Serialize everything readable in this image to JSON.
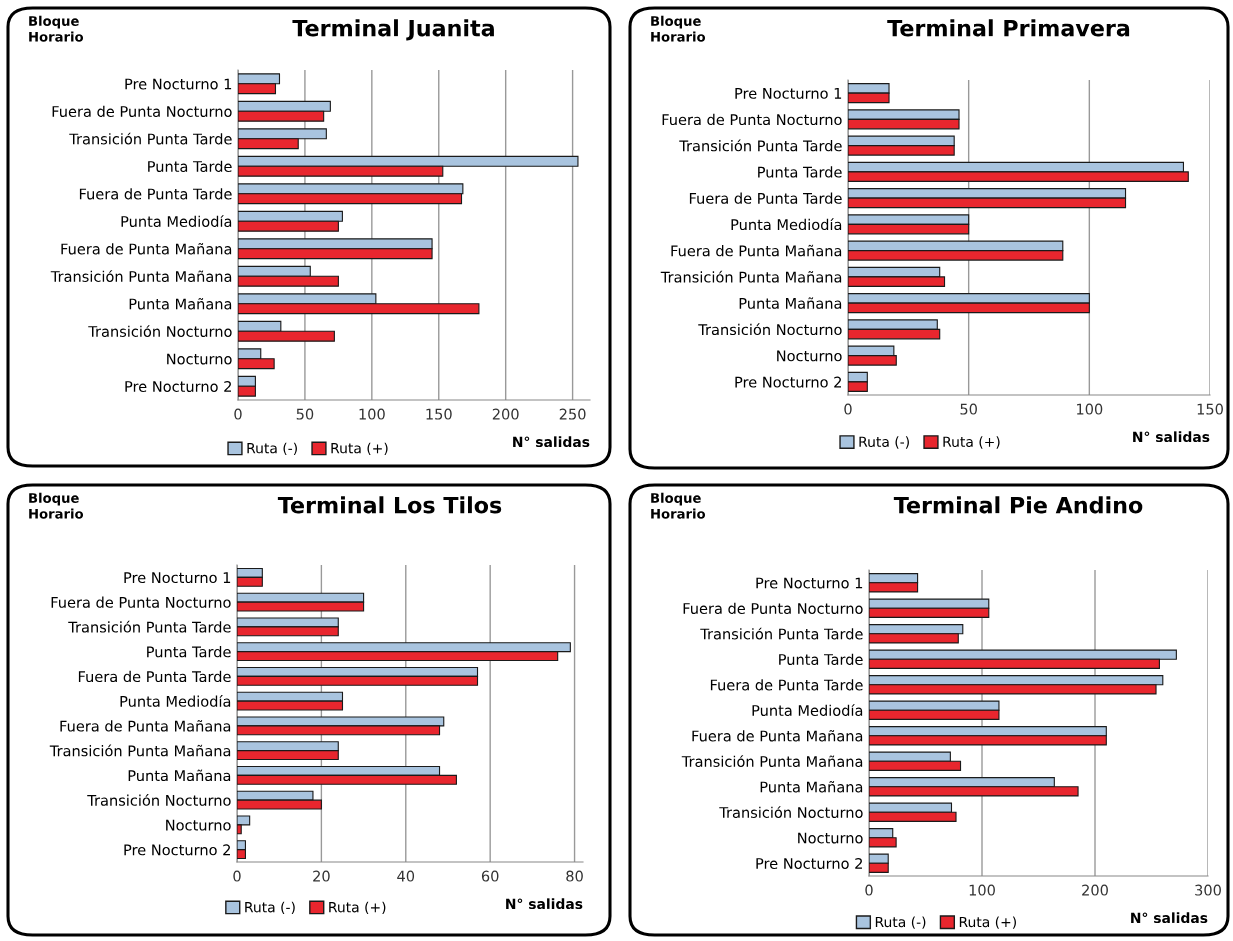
{
  "chart_data": [
    {
      "type": "bar",
      "orientation": "horizontal",
      "title": "Terminal Juanita",
      "ylabel": "Bloque Horario",
      "xlabel": "N° salidas",
      "categories": [
        "Pre Nocturno 1",
        "Fuera de Punta Nocturno",
        "Transición Punta Tarde",
        "Punta Tarde",
        "Fuera de Punta Tarde",
        "Punta Mediodía",
        "Fuera de Punta Mañana",
        "Transición Punta Mañana",
        "Punta Mañana",
        "Transición Nocturno",
        "Nocturno",
        "Pre Nocturno 2"
      ],
      "series": [
        {
          "name": "Ruta (-)",
          "color": "#a9c4df",
          "values": [
            31,
            69,
            66,
            254,
            168,
            78,
            145,
            54,
            103,
            32,
            17,
            13
          ]
        },
        {
          "name": "Ruta (+)",
          "color": "#e8262e",
          "values": [
            28,
            64,
            45,
            153,
            167,
            75,
            145,
            75,
            180,
            72,
            27,
            13
          ]
        }
      ],
      "xlim": [
        0,
        263
      ],
      "xticks": [
        0,
        50,
        100,
        150,
        200,
        250
      ],
      "grid": "x",
      "legend": "bottom"
    },
    {
      "type": "bar",
      "orientation": "horizontal",
      "title": "Terminal Primavera",
      "ylabel": "Bloque Horario",
      "xlabel": "N° salidas",
      "categories": [
        "Pre Nocturno 1",
        "Fuera de Punta Nocturno",
        "Transición Punta Tarde",
        "Punta Tarde",
        "Fuera de Punta Tarde",
        "Punta Mediodía",
        "Fuera de Punta Mañana",
        "Transición Punta Mañana",
        "Punta Mañana",
        "Transición Nocturno",
        "Nocturno",
        "Pre Nocturno 2"
      ],
      "series": [
        {
          "name": "Ruta (-)",
          "color": "#a9c4df",
          "values": [
            17,
            46,
            44,
            139,
            115,
            50,
            89,
            38,
            100,
            37,
            19,
            8
          ]
        },
        {
          "name": "Ruta (+)",
          "color": "#e8262e",
          "values": [
            17,
            46,
            44,
            141,
            115,
            50,
            89,
            40,
            100,
            38,
            20,
            8
          ]
        }
      ],
      "xlim": [
        0,
        150
      ],
      "xticks": [
        0,
        50,
        100,
        150
      ],
      "grid": "x",
      "legend": "bottom"
    },
    {
      "type": "bar",
      "orientation": "horizontal",
      "title": "Terminal Los Tilos",
      "ylabel": "Bloque Horario",
      "xlabel": "N° salidas",
      "categories": [
        "Pre Nocturno 1",
        "Fuera de Punta Nocturno",
        "Transición Punta Tarde",
        "Punta Tarde",
        "Fuera de Punta Tarde",
        "Punta Mediodía",
        "Fuera de Punta Mañana",
        "Transición Punta Mañana",
        "Punta Mañana",
        "Transición Nocturno",
        "Nocturno",
        "Pre Nocturno 2"
      ],
      "series": [
        {
          "name": "Ruta (-)",
          "color": "#a9c4df",
          "values": [
            6,
            30,
            24,
            79,
            57,
            25,
            49,
            24,
            48,
            18,
            3,
            2
          ]
        },
        {
          "name": "Ruta (+)",
          "color": "#e8262e",
          "values": [
            6,
            30,
            24,
            76,
            57,
            25,
            48,
            24,
            52,
            20,
            1,
            2
          ]
        }
      ],
      "xlim": [
        0,
        82
      ],
      "xticks": [
        0,
        20,
        40,
        60,
        80
      ],
      "grid": "x",
      "legend": "bottom"
    },
    {
      "type": "bar",
      "orientation": "horizontal",
      "title": "Terminal Pie Andino",
      "ylabel": "Bloque Horario",
      "xlabel": "N° salidas",
      "categories": [
        "Pre Nocturno 1",
        "Fuera de Punta Nocturno",
        "Transición Punta Tarde",
        "Punta Tarde",
        "Fuera de Punta Tarde",
        "Punta Mediodía",
        "Fuera de Punta Mañana",
        "Transición Punta Mañana",
        "Punta Mañana",
        "Transición Nocturno",
        "Nocturno",
        "Pre Nocturno 2"
      ],
      "series": [
        {
          "name": "Ruta (-)",
          "color": "#a9c4df",
          "values": [
            43,
            106,
            83,
            272,
            260,
            115,
            210,
            72,
            164,
            73,
            21,
            17
          ]
        },
        {
          "name": "Ruta (+)",
          "color": "#e8262e",
          "values": [
            43,
            106,
            79,
            257,
            254,
            115,
            210,
            81,
            185,
            77,
            24,
            17
          ]
        }
      ],
      "xlim": [
        0,
        300
      ],
      "xticks": [
        0,
        100,
        200,
        300
      ],
      "grid": "x",
      "legend": "bottom"
    }
  ]
}
